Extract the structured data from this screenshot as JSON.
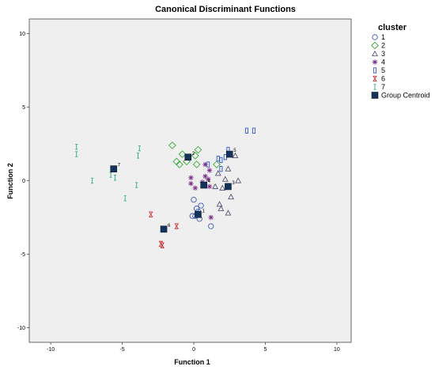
{
  "chart_data": {
    "type": "scatter",
    "title": "Canonical Discriminant Functions",
    "xlabel": "Function 1",
    "ylabel": "Function 2",
    "xlim": [
      -11.5,
      11
    ],
    "ylim": [
      -11,
      11
    ],
    "x_ticks": [
      -10,
      -5,
      0,
      5,
      10
    ],
    "y_ticks": [
      -10,
      -5,
      0,
      5,
      10
    ],
    "grid": false,
    "legend_title": "cluster",
    "legend_position": "right",
    "plot_background": "#efefef",
    "series": [
      {
        "name": "1",
        "marker": "circle",
        "color": "#3b5bb5",
        "points": [
          [
            -0.1,
            -2.4
          ],
          [
            0.1,
            -2.4
          ],
          [
            0.2,
            -1.9
          ],
          [
            0.5,
            -1.7
          ],
          [
            0.4,
            -2.6
          ],
          [
            1.2,
            -3.1
          ],
          [
            0,
            -1.3
          ],
          [
            0.3,
            -2.1
          ]
        ]
      },
      {
        "name": "2",
        "marker": "diamond",
        "color": "#3aab3a",
        "points": [
          [
            -1.5,
            2.4
          ],
          [
            -1.2,
            1.3
          ],
          [
            -0.8,
            1.8
          ],
          [
            0.1,
            1.7
          ],
          [
            0.3,
            2.1
          ],
          [
            0.2,
            1.1
          ],
          [
            -0.5,
            1.3
          ],
          [
            1.6,
            1.1
          ],
          [
            -1.0,
            1.1
          ]
        ]
      },
      {
        "name": "3",
        "marker": "triangle",
        "color": "#555577",
        "points": [
          [
            1.5,
            -0.4
          ],
          [
            2.0,
            -0.5
          ],
          [
            2.2,
            0.1
          ],
          [
            2.9,
            1.7
          ],
          [
            2.4,
            0.8
          ],
          [
            2.6,
            -1.1
          ],
          [
            3.1,
            0
          ],
          [
            2.4,
            -2.2
          ],
          [
            1.8,
            -1.6
          ],
          [
            1.9,
            -1.9
          ],
          [
            1.7,
            0.5
          ]
        ]
      },
      {
        "name": "4",
        "marker": "star",
        "color": "#7a2a8a",
        "points": [
          [
            0.8,
            0.3
          ],
          [
            -0.2,
            0.2
          ],
          [
            -0.2,
            -0.2
          ],
          [
            1.1,
            0.7
          ],
          [
            0.8,
            1.1
          ],
          [
            1.1,
            -0.4
          ],
          [
            1.2,
            -2.5
          ],
          [
            0.1,
            -0.5
          ],
          [
            0.6,
            -0.1
          ],
          [
            1.0,
            0.1
          ]
        ]
      },
      {
        "name": "5",
        "marker": "rect",
        "color": "#3355cc",
        "points": [
          [
            1.0,
            1.1
          ],
          [
            1.9,
            1.4
          ],
          [
            2.2,
            1.6
          ],
          [
            2.4,
            2.1
          ],
          [
            1.9,
            0.8
          ],
          [
            3.7,
            3.4
          ],
          [
            4.2,
            3.4
          ],
          [
            1.7,
            1.5
          ]
        ]
      },
      {
        "name": "6",
        "marker": "hourglass",
        "color": "#cc3333",
        "points": [
          [
            -3.0,
            -2.3
          ],
          [
            -1.2,
            -3.1
          ],
          [
            -2.2,
            -4.4
          ],
          [
            -2.3,
            -4.3
          ]
        ]
      },
      {
        "name": "7",
        "marker": "ibeam",
        "color": "#33aa88",
        "points": [
          [
            -8.2,
            2.3
          ],
          [
            -8.2,
            1.8
          ],
          [
            -5.8,
            0.4
          ],
          [
            -5.5,
            0.2
          ],
          [
            -3.8,
            2.2
          ],
          [
            -3.9,
            1.7
          ],
          [
            -7.1,
            0
          ],
          [
            -4.0,
            -0.3
          ],
          [
            -4.8,
            -1.2
          ]
        ]
      }
    ],
    "centroids": [
      {
        "cluster": "1",
        "label": "1",
        "x": 0.3,
        "y": -2.3
      },
      {
        "cluster": "2",
        "label": "2",
        "x": -0.4,
        "y": 1.6
      },
      {
        "cluster": "3",
        "label": "3",
        "x": 2.4,
        "y": -0.4
      },
      {
        "cluster": "4",
        "label": "4",
        "x": 0.7,
        "y": -0.3
      },
      {
        "cluster": "5",
        "label": "5",
        "x": 2.5,
        "y": 1.8
      },
      {
        "cluster": "6",
        "label": "6",
        "x": -2.1,
        "y": -3.3
      },
      {
        "cluster": "7",
        "label": "7",
        "x": -5.6,
        "y": 0.8
      }
    ],
    "centroid_legend_label": "Group Centroid",
    "centroid_color": "#14335a"
  }
}
